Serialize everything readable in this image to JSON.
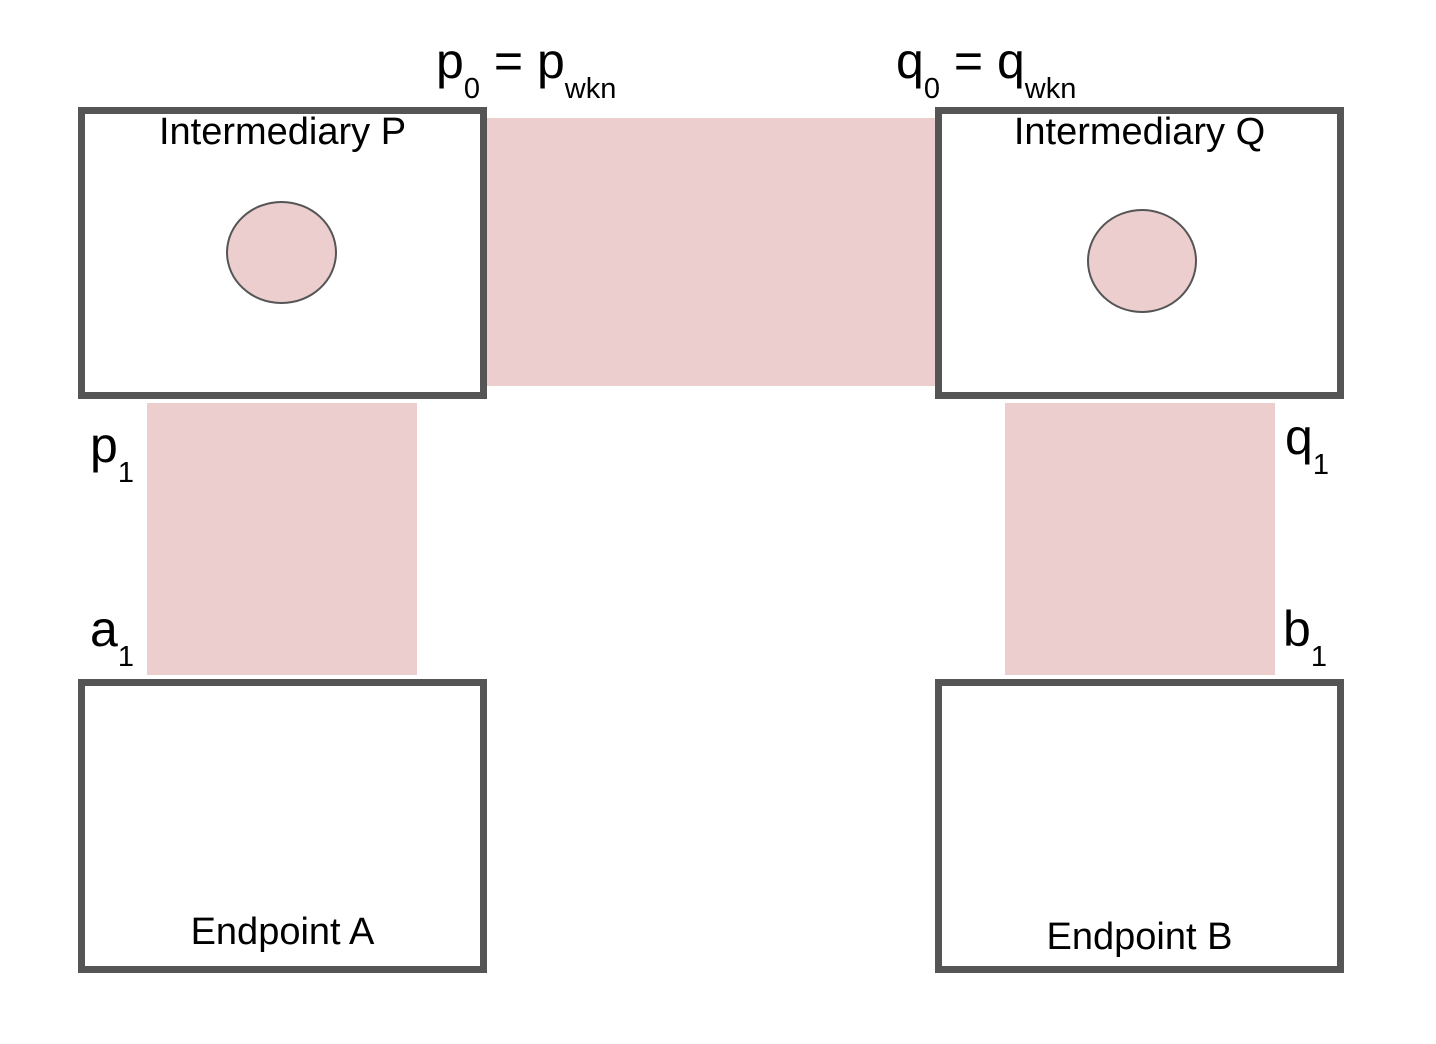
{
  "boxes": {
    "intermediary_p": "Intermediary P",
    "intermediary_q": "Intermediary Q",
    "endpoint_a": "Endpoint A",
    "endpoint_b": "Endpoint B"
  },
  "labels": {
    "p0": {
      "base": "p",
      "sub": "0",
      "eq": " = ",
      "rhs": "p",
      "rhs_sub": "wkn"
    },
    "q0": {
      "base": "q",
      "sub": "0",
      "eq": " = ",
      "rhs": "q",
      "rhs_sub": "wkn"
    },
    "p1": {
      "base": "p",
      "sub": "1"
    },
    "q1": {
      "base": "q",
      "sub": "1"
    },
    "a1": {
      "base": "a",
      "sub": "1"
    },
    "b1": {
      "base": "b",
      "sub": "1"
    }
  },
  "colors": {
    "band": "#eccece",
    "border": "#555555",
    "text": "#000000"
  }
}
